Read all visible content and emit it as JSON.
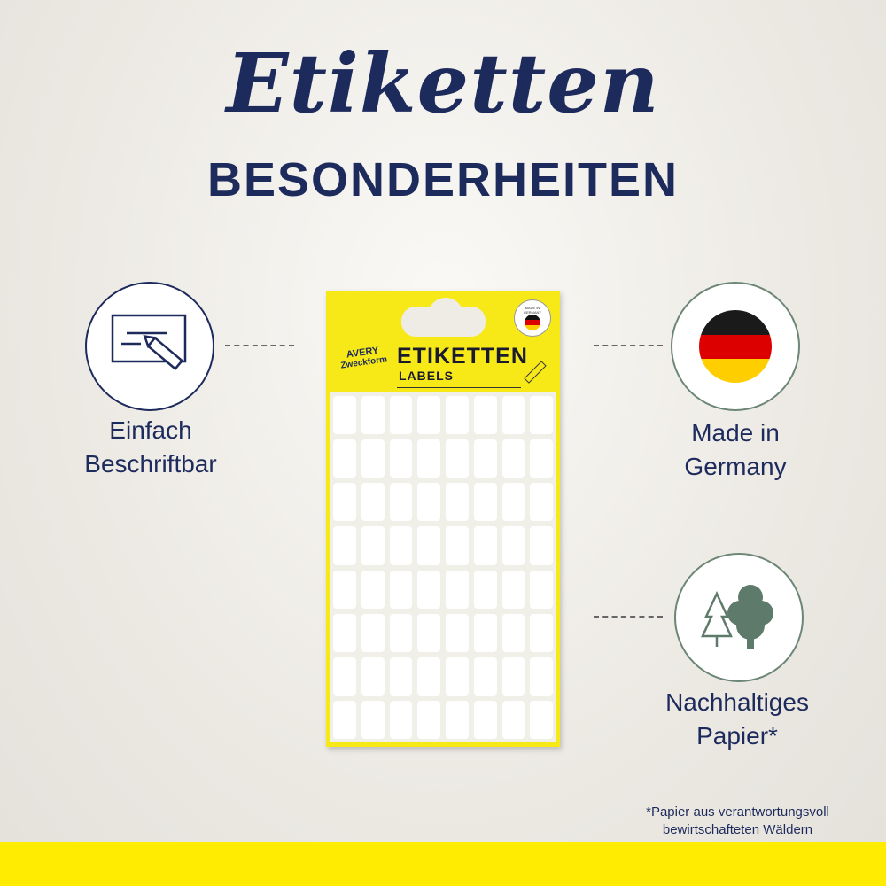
{
  "header": {
    "script_title": "Etiketten",
    "subtitle": "BESONDERHEITEN"
  },
  "features": [
    {
      "line1": "Einfach",
      "line2": "Beschriftbar",
      "icon": "label-pencil-icon"
    },
    {
      "line1": "Made in",
      "line2": "Germany",
      "icon": "germany-flag-icon"
    },
    {
      "line1": "Nachhaltiges",
      "line2": "Papier*",
      "icon": "trees-icon"
    }
  ],
  "product": {
    "brand_line1": "AVERY",
    "brand_line2": "Zweckform",
    "title": "ETIKETTEN",
    "subtitle": "LABELS",
    "badge": "MADE IN GERMANY",
    "label_rows": 8,
    "label_cols": 8
  },
  "footnote": {
    "line1": "*Papier aus verantwortungsvoll",
    "line2": "bewirtschafteten Wäldern"
  },
  "colors": {
    "navy": "#1d2a5c",
    "yellow": "#ffec00",
    "green": "#5e7a6a",
    "flag_black": "#1a1a1a",
    "flag_red": "#dd0000",
    "flag_gold": "#ffce00"
  }
}
